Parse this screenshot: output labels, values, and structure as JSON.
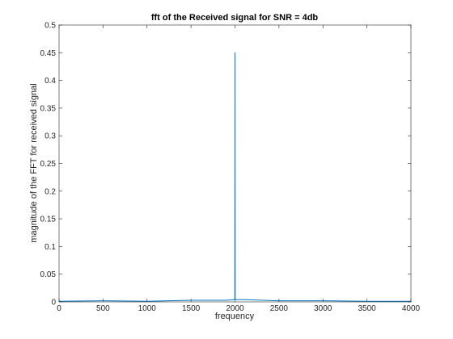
{
  "chart_data": {
    "type": "line",
    "title": "fft of the Received signal for SNR = 4db",
    "xlabel": "frequency",
    "ylabel": "magnitude of the FFT for received signal",
    "xlim": [
      0,
      4000
    ],
    "ylim": [
      0,
      0.5
    ],
    "xticks": [
      0,
      500,
      1000,
      1500,
      2000,
      2500,
      3000,
      3500,
      4000
    ],
    "yticks": [
      0,
      0.05,
      0.1,
      0.15,
      0.2,
      0.25,
      0.3,
      0.35,
      0.4,
      0.45,
      0.5
    ],
    "xtick_labels": [
      "0",
      "500",
      "1000",
      "1500",
      "2000",
      "2500",
      "3000",
      "3500",
      "4000"
    ],
    "ytick_labels": [
      "0",
      "0.05",
      "0.1",
      "0.15",
      "0.2",
      "0.25",
      "0.3",
      "0.35",
      "0.4",
      "0.45",
      "0.5"
    ],
    "grid": false,
    "series": [
      {
        "color": "#0072bd",
        "x": [
          0,
          500,
          1000,
          1500,
          1900,
          1995,
          1998,
          2000,
          2002,
          2005,
          2100,
          2500,
          3000,
          3500,
          4000
        ],
        "y": [
          0.001,
          0.002,
          0.001,
          0.003,
          0.003,
          0.004,
          0.005,
          0.45,
          0.005,
          0.004,
          0.004,
          0.002,
          0.002,
          0.001,
          0.001
        ]
      }
    ]
  }
}
